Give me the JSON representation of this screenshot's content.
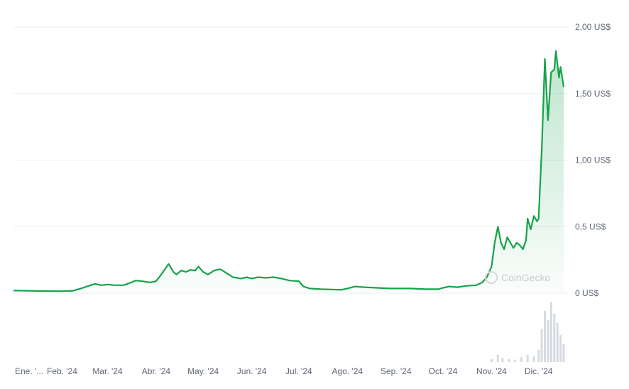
{
  "chart_data": {
    "type": "area",
    "currency_suffix": "US$",
    "ylim": [
      0,
      2.0
    ],
    "yticks": [
      {
        "value": 0,
        "label": "0 US$"
      },
      {
        "value": 0.5,
        "label": "0,5 US$"
      },
      {
        "value": 1.0,
        "label": "1,00 US$"
      },
      {
        "value": 1.5,
        "label": "1,50 US$"
      },
      {
        "value": 2.0,
        "label": "2,00 US$"
      }
    ],
    "x_range": [
      "2024-01-01",
      "2024-12-17"
    ],
    "xticks": [
      {
        "date": "2024-01-01",
        "label": "Ene. '..."
      },
      {
        "date": "2024-02-01",
        "label": "Feb. '24"
      },
      {
        "date": "2024-03-01",
        "label": "Mar. '24"
      },
      {
        "date": "2024-04-01",
        "label": "Abr. '24"
      },
      {
        "date": "2024-05-01",
        "label": "May. '24"
      },
      {
        "date": "2024-06-01",
        "label": "Jun. '24"
      },
      {
        "date": "2024-07-01",
        "label": "Jul. '24"
      },
      {
        "date": "2024-08-01",
        "label": "Ago. '24"
      },
      {
        "date": "2024-09-01",
        "label": "Sep. '24"
      },
      {
        "date": "2024-10-01",
        "label": "Oct. '24"
      },
      {
        "date": "2024-11-01",
        "label": "Nov. '24"
      },
      {
        "date": "2024-12-01",
        "label": "Dic. '24"
      }
    ],
    "grid": true,
    "series": [
      {
        "color": "#16a34a",
        "fill_color": "#16a34a",
        "points": [
          [
            "2024-01-01",
            0.02
          ],
          [
            "2024-01-10",
            0.018
          ],
          [
            "2024-01-20",
            0.016
          ],
          [
            "2024-02-01",
            0.015
          ],
          [
            "2024-02-08",
            0.018
          ],
          [
            "2024-02-13",
            0.035
          ],
          [
            "2024-02-18",
            0.055
          ],
          [
            "2024-02-22",
            0.07
          ],
          [
            "2024-02-26",
            0.06
          ],
          [
            "2024-03-01",
            0.065
          ],
          [
            "2024-03-06",
            0.06
          ],
          [
            "2024-03-11",
            0.06
          ],
          [
            "2024-03-15",
            0.075
          ],
          [
            "2024-03-19",
            0.095
          ],
          [
            "2024-03-23",
            0.09
          ],
          [
            "2024-03-28",
            0.08
          ],
          [
            "2024-04-01",
            0.09
          ],
          [
            "2024-04-03",
            0.12
          ],
          [
            "2024-04-06",
            0.17
          ],
          [
            "2024-04-09",
            0.22
          ],
          [
            "2024-04-12",
            0.16
          ],
          [
            "2024-04-14",
            0.14
          ],
          [
            "2024-04-17",
            0.17
          ],
          [
            "2024-04-20",
            0.16
          ],
          [
            "2024-04-23",
            0.175
          ],
          [
            "2024-04-26",
            0.17
          ],
          [
            "2024-04-28",
            0.2
          ],
          [
            "2024-05-01",
            0.16
          ],
          [
            "2024-05-04",
            0.14
          ],
          [
            "2024-05-08",
            0.17
          ],
          [
            "2024-05-12",
            0.18
          ],
          [
            "2024-05-16",
            0.15
          ],
          [
            "2024-05-20",
            0.12
          ],
          [
            "2024-05-25",
            0.11
          ],
          [
            "2024-05-29",
            0.12
          ],
          [
            "2024-06-01",
            0.11
          ],
          [
            "2024-06-05",
            0.12
          ],
          [
            "2024-06-10",
            0.115
          ],
          [
            "2024-06-15",
            0.12
          ],
          [
            "2024-06-20",
            0.11
          ],
          [
            "2024-06-25",
            0.095
          ],
          [
            "2024-07-01",
            0.09
          ],
          [
            "2024-07-04",
            0.05
          ],
          [
            "2024-07-08",
            0.035
          ],
          [
            "2024-07-15",
            0.03
          ],
          [
            "2024-07-22",
            0.028
          ],
          [
            "2024-07-28",
            0.025
          ],
          [
            "2024-08-01",
            0.035
          ],
          [
            "2024-08-06",
            0.05
          ],
          [
            "2024-08-12",
            0.045
          ],
          [
            "2024-08-20",
            0.04
          ],
          [
            "2024-08-28",
            0.035
          ],
          [
            "2024-09-01",
            0.035
          ],
          [
            "2024-09-10",
            0.035
          ],
          [
            "2024-09-20",
            0.03
          ],
          [
            "2024-09-28",
            0.03
          ],
          [
            "2024-10-01",
            0.04
          ],
          [
            "2024-10-05",
            0.05
          ],
          [
            "2024-10-10",
            0.045
          ],
          [
            "2024-10-16",
            0.055
          ],
          [
            "2024-10-22",
            0.06
          ],
          [
            "2024-10-26",
            0.08
          ],
          [
            "2024-10-29",
            0.12
          ],
          [
            "2024-11-01",
            0.2
          ],
          [
            "2024-11-03",
            0.38
          ],
          [
            "2024-11-04",
            0.44
          ],
          [
            "2024-11-05",
            0.5
          ],
          [
            "2024-11-07",
            0.38
          ],
          [
            "2024-11-09",
            0.33
          ],
          [
            "2024-11-11",
            0.42
          ],
          [
            "2024-11-13",
            0.38
          ],
          [
            "2024-11-15",
            0.34
          ],
          [
            "2024-11-17",
            0.38
          ],
          [
            "2024-11-19",
            0.36
          ],
          [
            "2024-11-21",
            0.33
          ],
          [
            "2024-11-23",
            0.4
          ],
          [
            "2024-11-24",
            0.56
          ],
          [
            "2024-11-26",
            0.48
          ],
          [
            "2024-11-28",
            0.58
          ],
          [
            "2024-11-30",
            0.54
          ],
          [
            "2024-12-01",
            0.56
          ],
          [
            "2024-12-03",
            1.08
          ],
          [
            "2024-12-05",
            1.76
          ],
          [
            "2024-12-07",
            1.3
          ],
          [
            "2024-12-09",
            1.66
          ],
          [
            "2024-12-11",
            1.68
          ],
          [
            "2024-12-12",
            1.82
          ],
          [
            "2024-12-14",
            1.62
          ],
          [
            "2024-12-15",
            1.7
          ],
          [
            "2024-12-17",
            1.55
          ]
        ]
      }
    ],
    "volume": [
      [
        "2024-11-01",
        0.05
      ],
      [
        "2024-11-05",
        0.12
      ],
      [
        "2024-11-08",
        0.07
      ],
      [
        "2024-11-12",
        0.05
      ],
      [
        "2024-11-16",
        0.04
      ],
      [
        "2024-11-20",
        0.08
      ],
      [
        "2024-11-24",
        0.12
      ],
      [
        "2024-11-28",
        0.1
      ],
      [
        "2024-12-01",
        0.2
      ],
      [
        "2024-12-03",
        0.55
      ],
      [
        "2024-12-05",
        0.85
      ],
      [
        "2024-12-07",
        0.7
      ],
      [
        "2024-12-09",
        1.0
      ],
      [
        "2024-12-11",
        0.8
      ],
      [
        "2024-12-13",
        0.65
      ],
      [
        "2024-12-15",
        0.45
      ],
      [
        "2024-12-17",
        0.3
      ]
    ],
    "watermark": "CoinGecko",
    "legend": "none"
  }
}
